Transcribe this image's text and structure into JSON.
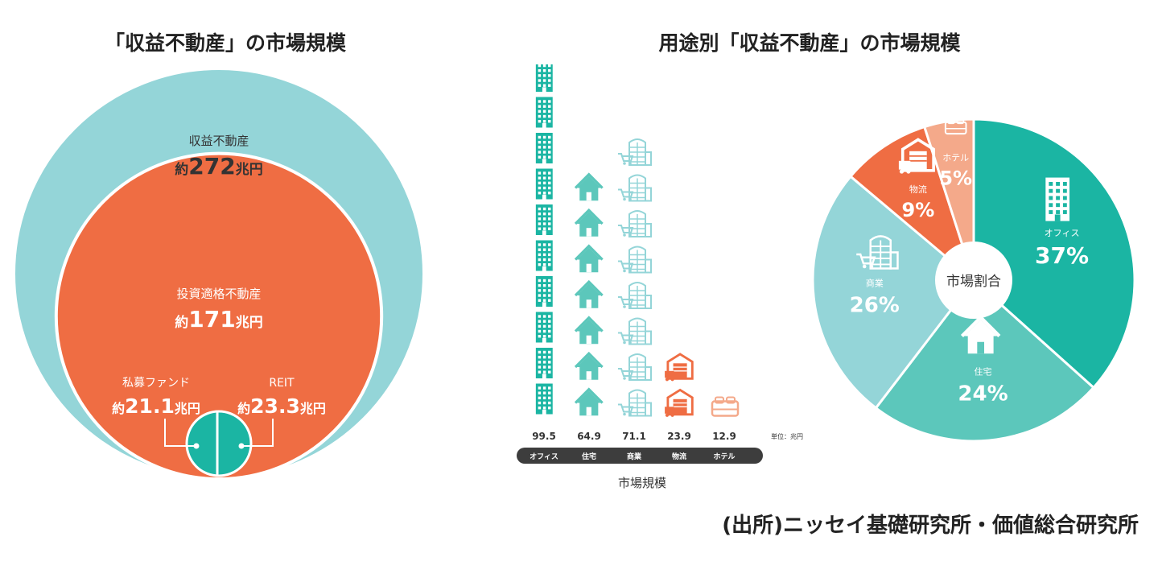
{
  "left_title": "「収益不動産」の市場規模",
  "right_title": "用途別「収益不動産」の市場規模",
  "source": "(出所)ニッセイ基礎研究所・価値総合研究所",
  "colors": {
    "teal": "#1bb5a3",
    "light_teal": "#5cc7bb",
    "light_blue": "#94d5d8",
    "orange": "#ef6d43",
    "peach": "#f4a98a",
    "dark_bar": "#3d3d3d"
  },
  "chart_data": [
    {
      "type": "nested-bubble",
      "items": [
        {
          "name": "収益不動産",
          "prefix": "約",
          "value": 272,
          "value_text": "272",
          "unit": "兆円",
          "color": "#94d5d8"
        },
        {
          "name": "投資適格不動産",
          "prefix": "約",
          "value": 171,
          "value_text": "171",
          "unit": "兆円",
          "color": "#ef6d43"
        },
        {
          "name": "私募ファンド",
          "prefix": "約",
          "value": 21.1,
          "value_text": "21.1",
          "unit": "兆円",
          "color": "#1bb5a3"
        },
        {
          "name": "REIT",
          "prefix": "約",
          "value": 23.3,
          "value_text": "23.3",
          "unit": "兆円",
          "color": "#1bb5a3"
        }
      ]
    },
    {
      "type": "bar",
      "style": "pictogram",
      "categories": [
        "オフィス",
        "住宅",
        "商業",
        "物流",
        "ホテル"
      ],
      "values": [
        99.5,
        64.9,
        71.1,
        23.9,
        12.9
      ],
      "value_labels": [
        "99.5",
        "64.9",
        "71.1",
        "23.9",
        "12.9"
      ],
      "icons": [
        "office-building-icon",
        "house-icon",
        "mall-icon",
        "warehouse-icon",
        "bed-icon"
      ],
      "icon_counts": [
        10,
        7,
        8,
        2,
        1
      ],
      "colors": [
        "#1bb5a3",
        "#5cc7bb",
        "#94d5d8",
        "#ef6d43",
        "#f4a98a"
      ],
      "unit_label": "単位：兆円",
      "xlabel": "市場規模"
    },
    {
      "type": "pie",
      "center_label": "市場割合",
      "labels": [
        "オフィス",
        "住宅",
        "商業",
        "物流",
        "ホテル"
      ],
      "values": [
        37,
        24,
        26,
        9,
        5
      ],
      "value_labels": [
        "37%",
        "24%",
        "26%",
        "9%",
        "5%"
      ],
      "colors": [
        "#1bb5a3",
        "#5cc7bb",
        "#94d5d8",
        "#ef6d43",
        "#f4a98a"
      ],
      "icons": [
        "office-building-icon",
        "house-icon",
        "mall-icon",
        "warehouse-icon",
        "bed-icon"
      ]
    }
  ]
}
